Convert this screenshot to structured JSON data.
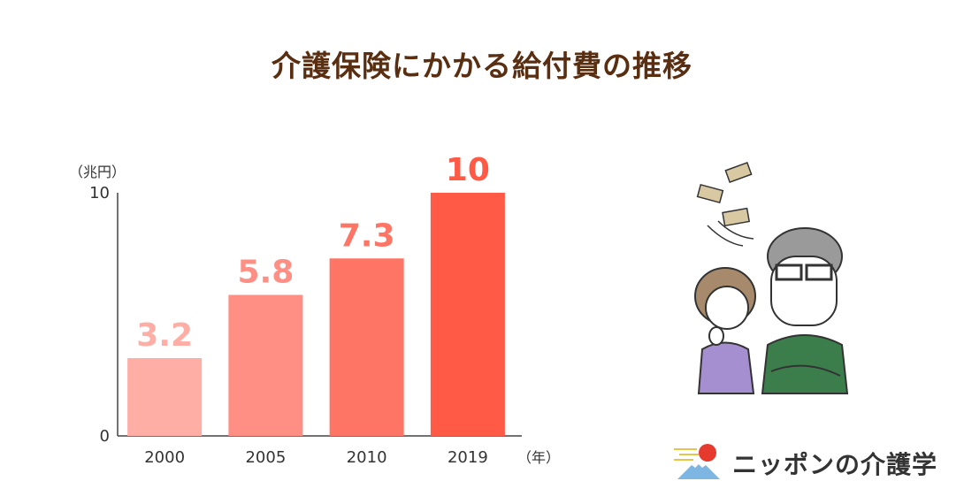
{
  "title": "介護保険にかかる給付費の推移",
  "chart_data": {
    "type": "bar",
    "title": "介護保険にかかる給付費の推移",
    "categories": [
      "2000",
      "2005",
      "2010",
      "2019"
    ],
    "values": [
      3.2,
      5.8,
      7.3,
      10
    ],
    "value_labels": [
      "3.2",
      "5.8",
      "7.3",
      "10"
    ],
    "bar_colors": [
      "#ffaea6",
      "#ff8e84",
      "#ff7565",
      "#ff5a46"
    ],
    "ylim": [
      0,
      10
    ],
    "yticks": [
      "0",
      "10"
    ],
    "ylabel": "（兆円）",
    "xlabel": "（年）",
    "grid": false
  },
  "logo": {
    "text": "ニッポンの介護学"
  }
}
